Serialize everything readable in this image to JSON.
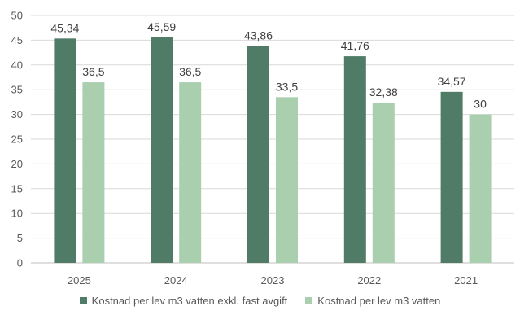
{
  "chart_data": {
    "type": "bar",
    "categories": [
      "2025",
      "2024",
      "2023",
      "2022",
      "2021"
    ],
    "series": [
      {
        "name": "Kostnad per lev m3 vatten exkl. fast avgift",
        "values": [
          45.34,
          45.59,
          43.86,
          41.76,
          34.57
        ],
        "labels": [
          "45,34",
          "45,59",
          "43,86",
          "41,76",
          "34,57"
        ],
        "color": "#507c67"
      },
      {
        "name": "Kostnad per lev m3 vatten",
        "values": [
          36.5,
          36.5,
          33.5,
          32.38,
          30
        ],
        "labels": [
          "36,5",
          "36,5",
          "33,5",
          "32,38",
          "30"
        ],
        "color": "#a9cfaf"
      }
    ],
    "ylim": [
      0,
      50
    ],
    "yticks": [
      "0",
      "5",
      "10",
      "15",
      "20",
      "25",
      "30",
      "35",
      "40",
      "45",
      "50"
    ],
    "grid": true,
    "legend_position": "bottom"
  }
}
